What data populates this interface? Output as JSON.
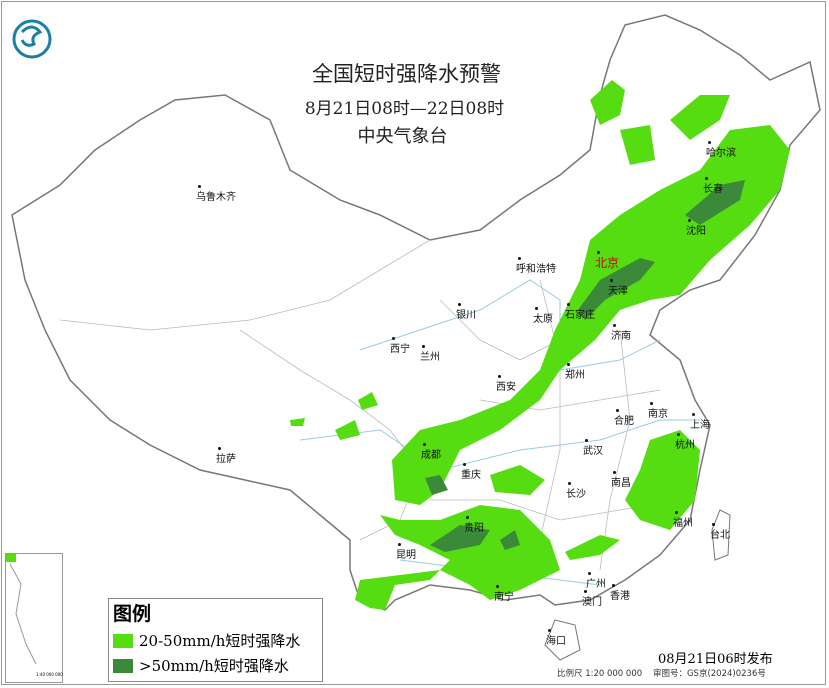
{
  "header": {
    "title": "全国短时强降水预警",
    "period": "8月21日08时—22日08时",
    "issuer": "中央气象台"
  },
  "logo": {
    "icon": "cma-logo-icon",
    "color": "#1a7fa0"
  },
  "cities": [
    "乌鲁木齐",
    "拉萨",
    "西宁",
    "兰州",
    "银川",
    "呼和浩特",
    "北京",
    "天津",
    "石家庄",
    "太原",
    "济南",
    "郑州",
    "西安",
    "成都",
    "重庆",
    "武汉",
    "合肥",
    "南京",
    "上海",
    "杭州",
    "长沙",
    "南昌",
    "福州",
    "台北",
    "贵阳",
    "昆明",
    "南宁",
    "广州",
    "香港",
    "澳门",
    "海口",
    "哈尔滨",
    "长春",
    "沈阳"
  ],
  "legend": {
    "title": "图例",
    "items": [
      {
        "label": "20-50mm/h短时强降水",
        "color": "#55dd11"
      },
      {
        "label": ">50mm/h短时强降水",
        "color": "#3a8a3a"
      }
    ]
  },
  "footer": {
    "issued": "08月21日06时发布",
    "scale": "比例尺 1:20 000 000",
    "approval": "审图号：GS京(2024)0236号"
  },
  "inset": {
    "scale": "1:40 000 000"
  }
}
